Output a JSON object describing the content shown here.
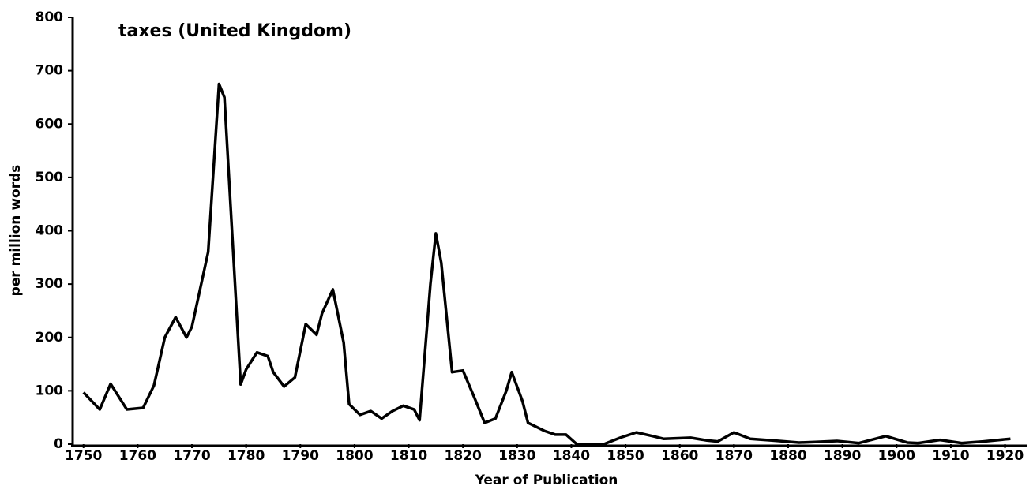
{
  "chart_data": {
    "type": "line",
    "title": "taxes (United Kingdom)",
    "x_label": "Year of Publication",
    "y_label": "per million words",
    "x": [
      1750,
      1753,
      1755,
      1758,
      1761,
      1763,
      1765,
      1767,
      1769,
      1770,
      1773,
      1775,
      1776,
      1779,
      1780,
      1782,
      1784,
      1785,
      1787,
      1789,
      1791,
      1793,
      1794,
      1796,
      1798,
      1799,
      1801,
      1803,
      1805,
      1807,
      1809,
      1811,
      1812,
      1814,
      1815,
      1816,
      1818,
      1820,
      1822,
      1824,
      1826,
      1828,
      1829,
      1831,
      1832,
      1835,
      1837,
      1839,
      1841,
      1844,
      1846,
      1849,
      1852,
      1855,
      1857,
      1862,
      1865,
      1867,
      1870,
      1873,
      1877,
      1882,
      1885,
      1889,
      1893,
      1898,
      1902,
      1904,
      1908,
      1912,
      1916,
      1921
    ],
    "series": [
      {
        "name": "taxes",
        "color": "#000000",
        "values": [
          97,
          65,
          113,
          65,
          68,
          110,
          200,
          238,
          200,
          220,
          360,
          675,
          650,
          112,
          140,
          172,
          165,
          135,
          108,
          125,
          225,
          205,
          245,
          290,
          190,
          75,
          55,
          62,
          48,
          62,
          72,
          65,
          45,
          300,
          395,
          340,
          135,
          138,
          90,
          40,
          48,
          100,
          135,
          80,
          40,
          25,
          18,
          18,
          0,
          0,
          0,
          12,
          22,
          15,
          10,
          12,
          7,
          5,
          22,
          10,
          7,
          3,
          4,
          6,
          2,
          15,
          3,
          2,
          8,
          2,
          5,
          10
        ]
      }
    ],
    "xlim": [
      1748,
      1924
    ],
    "xticks": [
      1750,
      1760,
      1770,
      1780,
      1790,
      1800,
      1810,
      1820,
      1830,
      1840,
      1850,
      1860,
      1870,
      1880,
      1890,
      1900,
      1910,
      1920
    ],
    "ylim": [
      0,
      800
    ],
    "yticks": [
      0,
      100,
      200,
      300,
      400,
      500,
      600,
      700,
      800
    ]
  }
}
